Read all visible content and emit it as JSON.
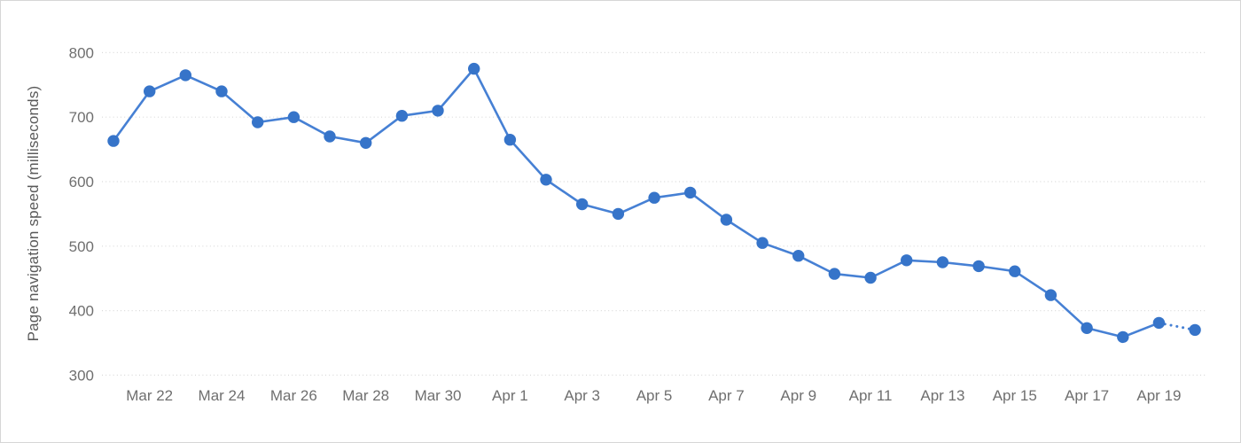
{
  "chart_data": {
    "type": "line",
    "title": "",
    "xlabel": "",
    "ylabel": "Page navigation speed (milliseconds)",
    "legend_position": "none",
    "grid": "horizontal-dotted",
    "ylim": [
      300,
      800
    ],
    "y_ticks": [
      800,
      700,
      600,
      500,
      400,
      300
    ],
    "x_tick_labels": [
      "Mar 22",
      "Mar 24",
      "Mar 26",
      "Mar 28",
      "Mar 30",
      "Apr 1",
      "Apr 3",
      "Apr 5",
      "Apr 7",
      "Apr 9",
      "Apr 11",
      "Apr 13",
      "Apr 15",
      "Apr 17",
      "Apr 19"
    ],
    "x": [
      "Mar 21",
      "Mar 22",
      "Mar 23",
      "Mar 24",
      "Mar 25",
      "Mar 26",
      "Mar 27",
      "Mar 28",
      "Mar 29",
      "Mar 30",
      "Mar 31",
      "Apr 1",
      "Apr 2",
      "Apr 3",
      "Apr 4",
      "Apr 5",
      "Apr 6",
      "Apr 7",
      "Apr 8",
      "Apr 9",
      "Apr 10",
      "Apr 11",
      "Apr 12",
      "Apr 13",
      "Apr 14",
      "Apr 15",
      "Apr 16",
      "Apr 17",
      "Apr 18",
      "Apr 19",
      "Apr 20"
    ],
    "series": [
      {
        "name": "Page navigation speed",
        "values": [
          663,
          740,
          765,
          740,
          692,
          700,
          670,
          660,
          702,
          710,
          775,
          665,
          603,
          565,
          550,
          575,
          583,
          541,
          505,
          485,
          457,
          451,
          478,
          475,
          469,
          461,
          424,
          373,
          359,
          381,
          370
        ],
        "last_segment_style": "dotted"
      }
    ],
    "colors": {
      "line": "#4680d4",
      "marker": "#3674c9",
      "grid": "#d9d9d9",
      "tick_label": "#6f6f6f",
      "axis_title": "#595959",
      "background": "#ffffff",
      "border": "#d6d6d6"
    }
  }
}
